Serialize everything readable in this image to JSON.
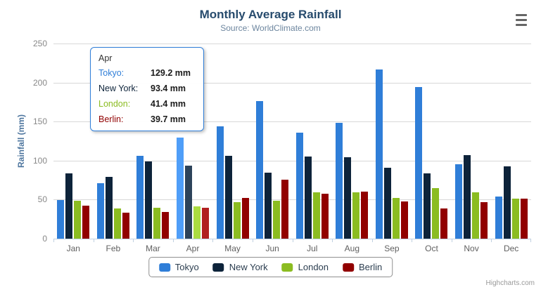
{
  "chart_data": {
    "type": "bar",
    "title": "Monthly Average Rainfall",
    "subtitle": "Source: WorldClimate.com",
    "categories": [
      "Jan",
      "Feb",
      "Mar",
      "Apr",
      "May",
      "Jun",
      "Jul",
      "Aug",
      "Sep",
      "Oct",
      "Nov",
      "Dec"
    ],
    "series": [
      {
        "name": "Tokyo",
        "color": "#2f7ed8",
        "values": [
          49.9,
          71.5,
          106.4,
          129.2,
          144.0,
          176.0,
          135.6,
          148.5,
          216.4,
          194.1,
          95.6,
          54.4
        ]
      },
      {
        "name": "New York",
        "color": "#0d233a",
        "values": [
          83.6,
          78.8,
          98.5,
          93.4,
          106.0,
          84.5,
          105.0,
          104.3,
          91.2,
          83.5,
          106.6,
          92.3
        ]
      },
      {
        "name": "London",
        "color": "#8bbc21",
        "values": [
          48.9,
          38.8,
          39.3,
          41.4,
          47.0,
          48.3,
          59.0,
          59.6,
          52.4,
          65.2,
          59.3,
          51.2
        ]
      },
      {
        "name": "Berlin",
        "color": "#910000",
        "values": [
          42.4,
          33.2,
          34.5,
          39.7,
          52.6,
          75.5,
          57.4,
          60.4,
          47.6,
          39.1,
          46.8,
          51.1
        ]
      }
    ],
    "xlabel": "",
    "ylabel": "Rainfall (mm)",
    "yticks": [
      0,
      50,
      100,
      150,
      200,
      250
    ],
    "ylim": [
      0,
      250
    ],
    "grid": true,
    "legend_position": "bottom",
    "hovered_category": "Apr"
  },
  "tooltip": {
    "title": "Apr",
    "rows": [
      {
        "label": "Tokyo:",
        "value": "129.2 mm",
        "color": "#2f7ed8"
      },
      {
        "label": "New York:",
        "value": "93.4 mm",
        "color": "#0d233a"
      },
      {
        "label": "London:",
        "value": "41.4 mm",
        "color": "#8bbc21"
      },
      {
        "label": "Berlin:",
        "value": "39.7 mm",
        "color": "#910000"
      }
    ]
  },
  "legend": {
    "items": [
      {
        "label": "Tokyo",
        "color": "#2f7ed8"
      },
      {
        "label": "New York",
        "color": "#0d233a"
      },
      {
        "label": "London",
        "color": "#8bbc21"
      },
      {
        "label": "Berlin",
        "color": "#910000"
      }
    ]
  },
  "credits": {
    "text": "Highcharts.com"
  }
}
